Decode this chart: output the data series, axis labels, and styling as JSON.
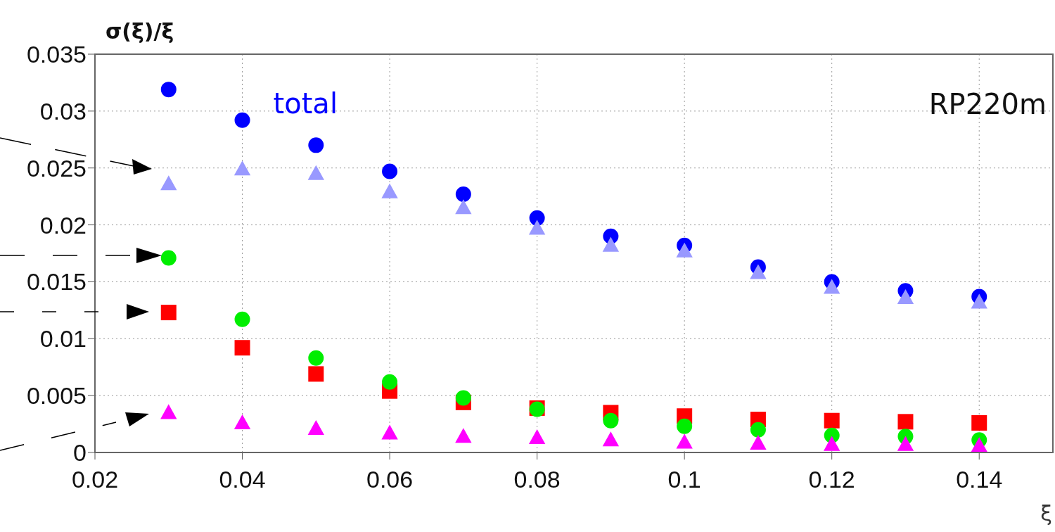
{
  "chart_data": {
    "type": "scatter",
    "ylabel": "σ(ξ)/ξ",
    "xlabel": "ξ",
    "annotations": [
      "RP220m"
    ],
    "x": [
      0.03,
      0.04,
      0.05,
      0.06,
      0.07,
      0.08,
      0.09,
      0.1,
      0.11,
      0.12,
      0.13,
      0.14
    ],
    "series": [
      {
        "name": "total",
        "color": "#0000ff",
        "marker": "circle",
        "values": [
          0.0319,
          0.0292,
          0.027,
          0.0247,
          0.0227,
          0.0206,
          0.019,
          0.0182,
          0.0163,
          0.015,
          0.0142,
          0.0137
        ]
      },
      {
        "color": "#9999ff",
        "marker": "triangle",
        "values": [
          0.0236,
          0.0249,
          0.0245,
          0.0229,
          0.0215,
          0.0197,
          0.0182,
          0.0177,
          0.0158,
          0.0145,
          0.0136,
          0.0132
        ]
      },
      {
        "color": "#ff0000",
        "marker": "square",
        "values": [
          0.0123,
          0.0092,
          0.0069,
          0.0054,
          0.0044,
          0.0039,
          0.0035,
          0.0032,
          0.0029,
          0.0028,
          0.0027,
          0.0026
        ]
      },
      {
        "color": "#00ee00",
        "marker": "circle",
        "values": [
          0.0171,
          0.0117,
          0.0083,
          0.0062,
          0.0048,
          0.0038,
          0.0028,
          0.0023,
          0.002,
          0.0015,
          0.0014,
          0.0011
        ]
      },
      {
        "color": "#ff00ff",
        "marker": "triangle",
        "values": [
          0.0035,
          0.0026,
          0.0021,
          0.0017,
          0.0014,
          0.0013,
          0.0011,
          0.0009,
          0.0008,
          0.0007,
          0.0007,
          0.0006
        ]
      }
    ],
    "xlim": [
      0.02,
      0.15
    ],
    "xticks": [
      0.02,
      0.04,
      0.06,
      0.08,
      0.1,
      0.12,
      0.14
    ],
    "ylim": [
      0,
      0.035
    ],
    "yticks": [
      0,
      0.005,
      0.01,
      0.015,
      0.02,
      0.025,
      0.03,
      0.035
    ],
    "grid": true
  }
}
